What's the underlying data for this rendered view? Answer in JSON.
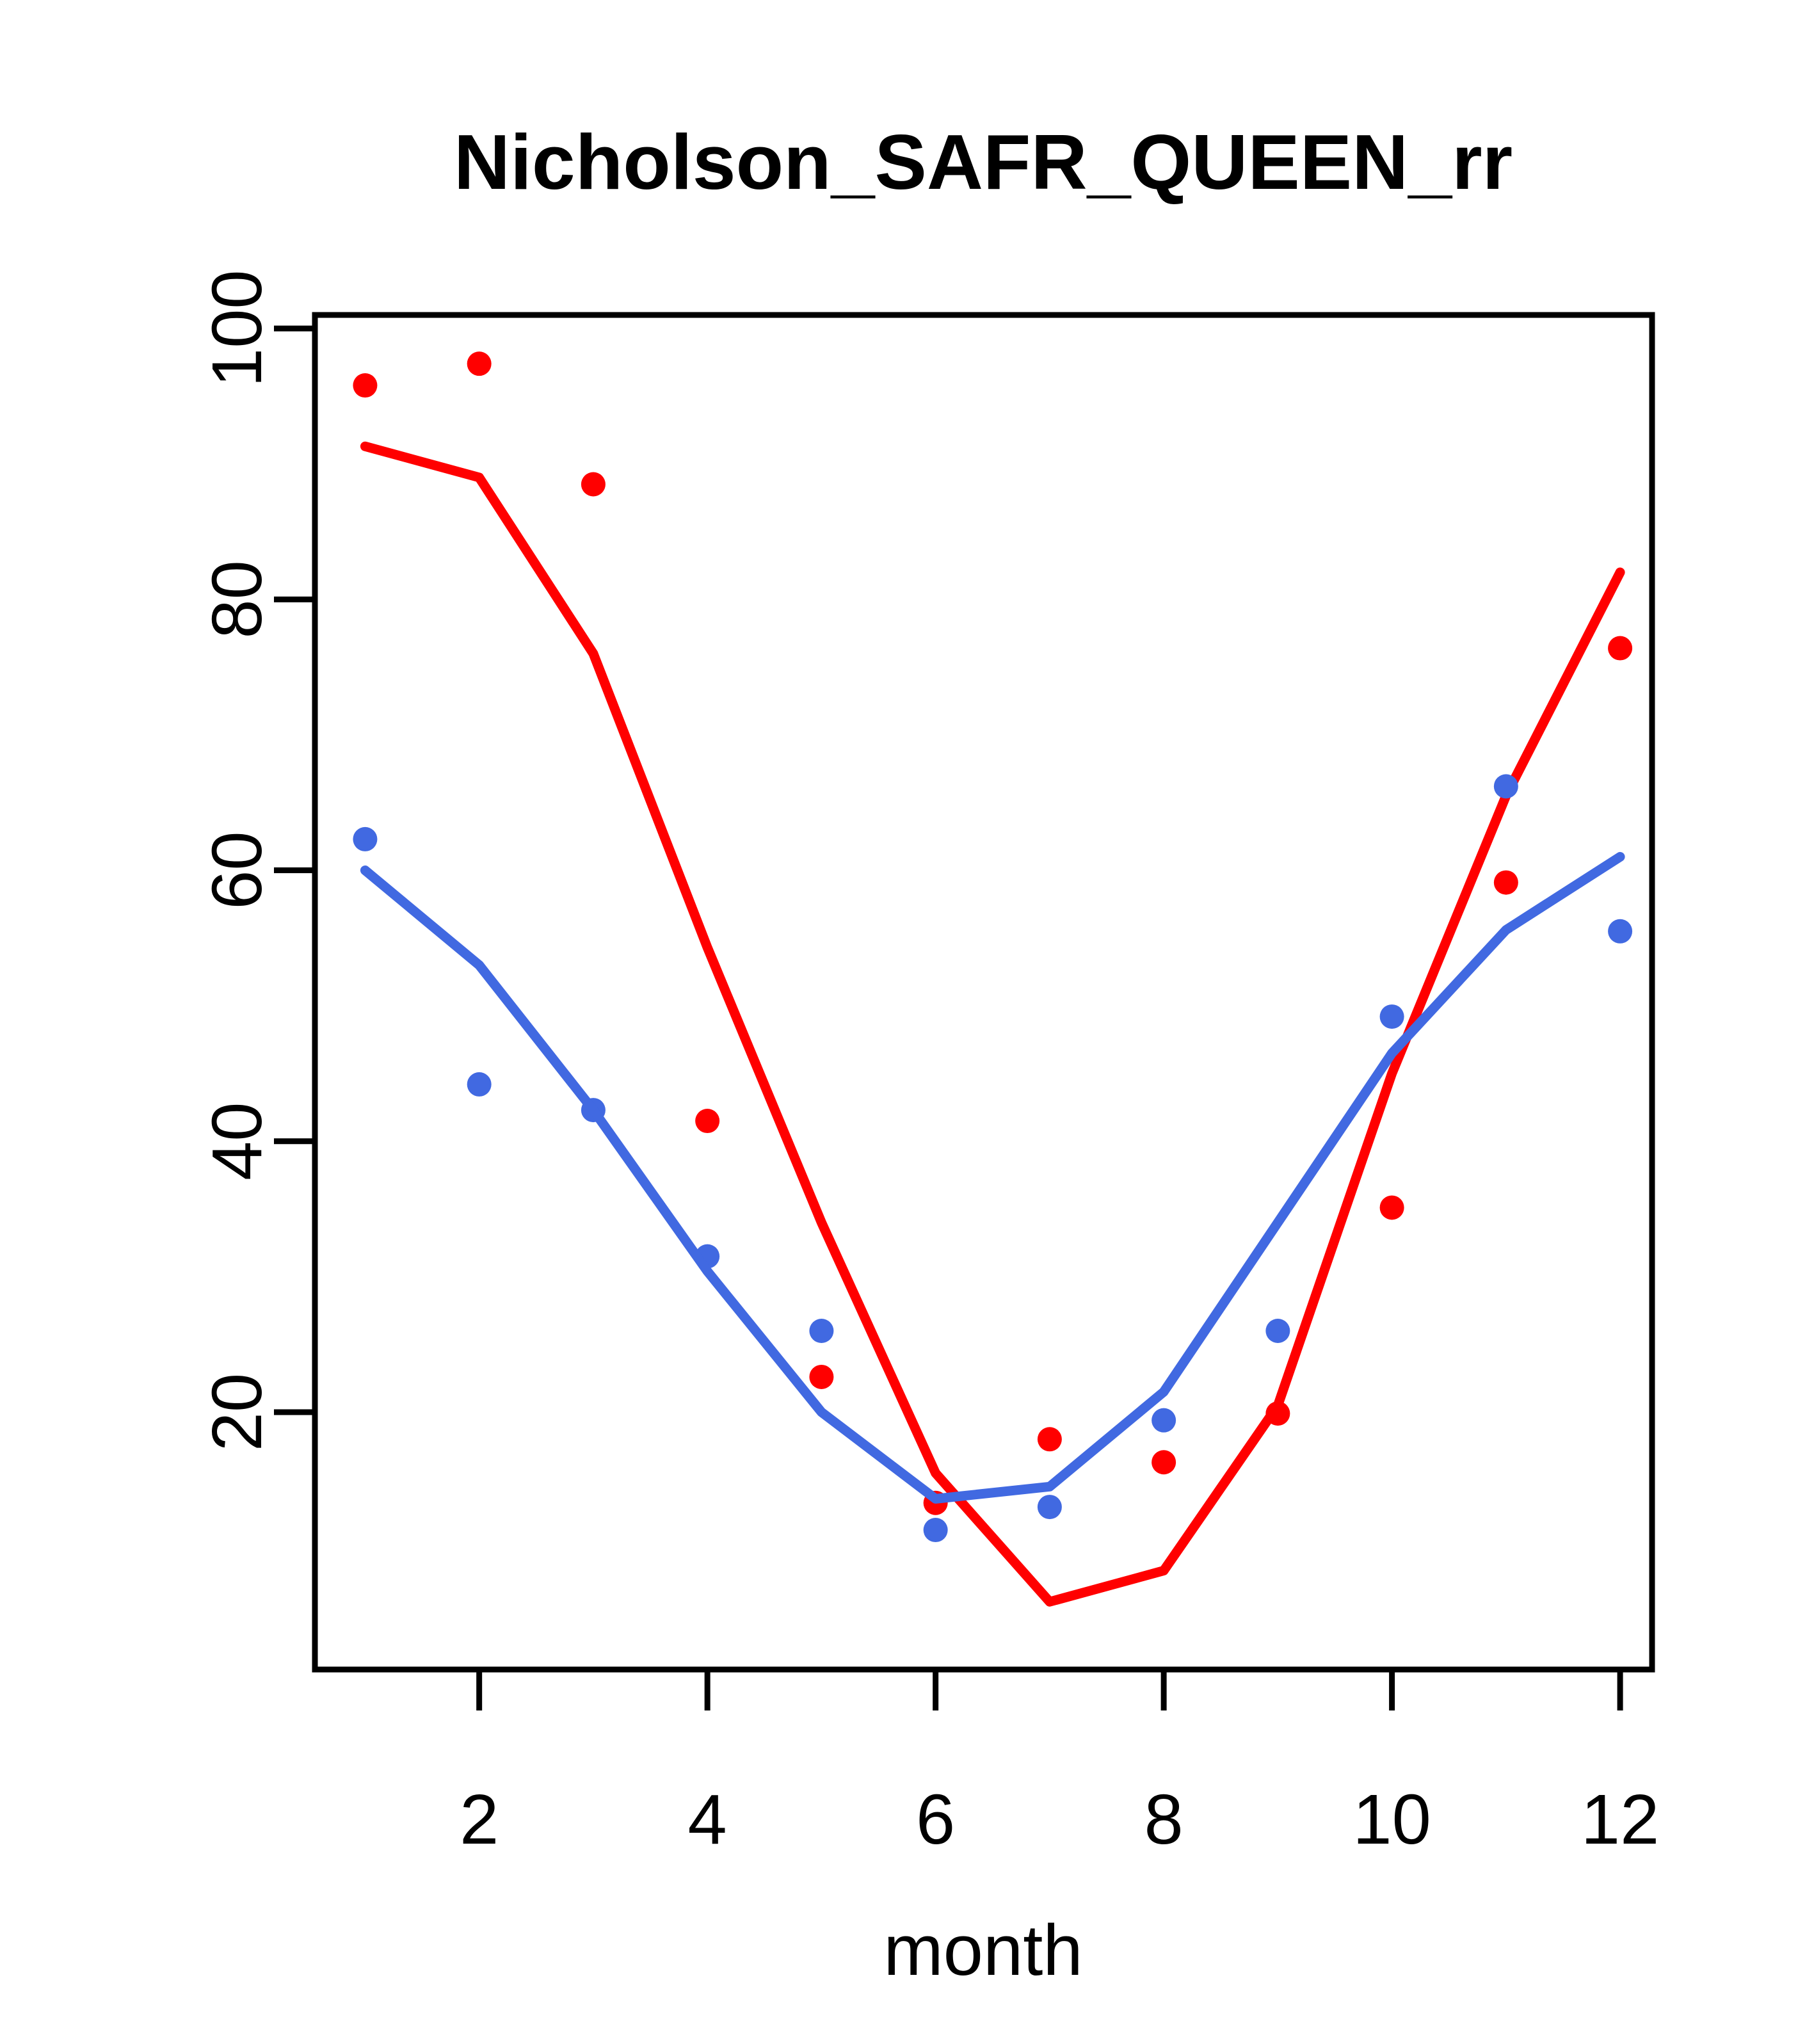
{
  "chart_data": {
    "type": "scatter",
    "title": "Nicholson_SAFR_QUEEN_rr",
    "xlabel": "month",
    "ylabel": "",
    "x_ticks": [
      2,
      4,
      6,
      8,
      10,
      12
    ],
    "y_ticks": [
      20,
      40,
      60,
      80,
      100
    ],
    "xlim": [
      0.56,
      12.28
    ],
    "ylim": [
      1.0,
      101.0
    ],
    "grid": "off",
    "legend": "none",
    "months": [
      1,
      2,
      3,
      4,
      5,
      6,
      7,
      8,
      9,
      10,
      11,
      12
    ],
    "colors": {
      "red": "#FF0000",
      "blue": "#4169E1",
      "axis": "#000000",
      "background": "#FFFFFF"
    },
    "series": [
      {
        "name": "red-points",
        "style": "points",
        "color_key": "red",
        "values": [
          95.8,
          97.4,
          88.5,
          41.5,
          22.6,
          13.3,
          18.0,
          16.3,
          19.9,
          35.1,
          59.1,
          76.4
        ]
      },
      {
        "name": "red-line",
        "style": "line",
        "color_key": "red",
        "values": [
          91.3,
          89.0,
          76.0,
          54.3,
          34.0,
          15.5,
          6.0,
          8.3,
          20.5,
          45.0,
          65.5,
          82.0
        ]
      },
      {
        "name": "blue-points",
        "style": "points",
        "color_key": "blue",
        "values": [
          62.3,
          44.2,
          42.3,
          31.5,
          26.0,
          11.3,
          13.0,
          19.4,
          26.0,
          49.2,
          66.2,
          55.5
        ]
      },
      {
        "name": "blue-line",
        "style": "line",
        "color_key": "blue",
        "values": [
          60.0,
          53.0,
          42.3,
          30.4,
          20.0,
          13.6,
          14.5,
          21.5,
          34.0,
          46.5,
          55.6,
          61.0
        ]
      }
    ]
  }
}
